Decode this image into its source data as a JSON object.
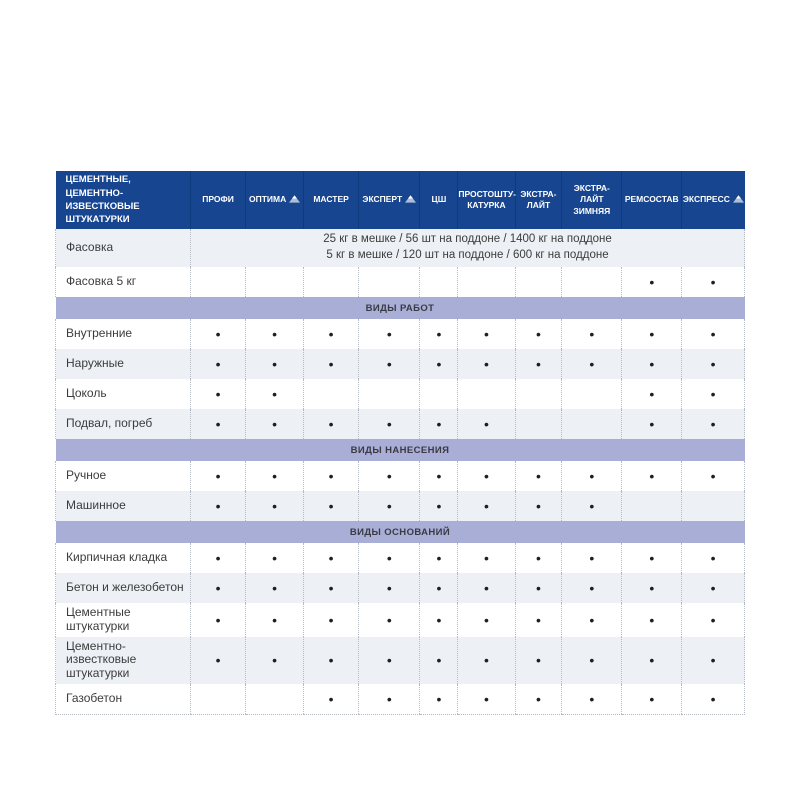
{
  "table": {
    "corner_title": "ЦЕМЕНТНЫЕ,\nЦЕМЕНТНО-ИЗВЕСТКОВЫЕ\nШТУКАТУРКИ",
    "dot_glyph": "•",
    "colors": {
      "header_bg": "#17458f",
      "section_bg": "#a8aed6",
      "row_alt_bg": "#edf0f5",
      "dot_color": "#1f1f1f"
    },
    "columns": [
      {
        "label": "ПРОФИ"
      },
      {
        "label": "ОПТИМА",
        "icon": "mountain-icon"
      },
      {
        "label": "МАСТЕР"
      },
      {
        "label": "ЭКСПЕРТ",
        "icon": "mountain-icon"
      },
      {
        "label": "ЦШ"
      },
      {
        "label": "ПРОСТОШТУ-\nКАТУРКА"
      },
      {
        "label": "ЭКСТРА-\nЛАЙТ"
      },
      {
        "label": "ЭКСТРА-\nЛАЙТ\nЗИМНЯЯ"
      },
      {
        "label": "РЕМСОСТАВ"
      },
      {
        "label": "ЭКСПРЕСС",
        "icon": "mountain-icon"
      }
    ],
    "rows": [
      {
        "type": "span",
        "label": "Фасовка",
        "lines": [
          "25 кг в мешке / 56 шт на поддоне / 1400 кг на поддоне",
          "5 кг в мешке / 120 шт на поддоне / 600 кг на поддоне"
        ]
      },
      {
        "type": "dots",
        "label": "Фасовка 5 кг",
        "dots": [
          0,
          0,
          0,
          0,
          0,
          0,
          0,
          0,
          1,
          1
        ]
      },
      {
        "type": "section",
        "label": "ВИДЫ РАБОТ"
      },
      {
        "type": "dots",
        "label": "Внутренние",
        "dots": [
          1,
          1,
          1,
          1,
          1,
          1,
          1,
          1,
          1,
          1
        ]
      },
      {
        "type": "dots",
        "label": "Наружные",
        "dots": [
          1,
          1,
          1,
          1,
          1,
          1,
          1,
          1,
          1,
          1
        ]
      },
      {
        "type": "dots",
        "label": "Цоколь",
        "dots": [
          1,
          1,
          0,
          0,
          0,
          0,
          0,
          0,
          1,
          1
        ]
      },
      {
        "type": "dots",
        "label": "Подвал, погреб",
        "dots": [
          1,
          1,
          1,
          1,
          1,
          1,
          0,
          0,
          1,
          1
        ]
      },
      {
        "type": "section",
        "label": "ВИДЫ НАНЕСЕНИЯ"
      },
      {
        "type": "dots",
        "label": "Ручное",
        "dots": [
          1,
          1,
          1,
          1,
          1,
          1,
          1,
          1,
          1,
          1
        ]
      },
      {
        "type": "dots",
        "label": "Машинное",
        "dots": [
          1,
          1,
          1,
          1,
          1,
          1,
          1,
          1,
          0,
          0
        ]
      },
      {
        "type": "section",
        "label": "ВИДЫ ОСНОВАНИЙ"
      },
      {
        "type": "dots",
        "label": "Кирпичная кладка",
        "dots": [
          1,
          1,
          1,
          1,
          1,
          1,
          1,
          1,
          1,
          1
        ]
      },
      {
        "type": "dots",
        "label": "Бетон и железобетон",
        "dots": [
          1,
          1,
          1,
          1,
          1,
          1,
          1,
          1,
          1,
          1
        ]
      },
      {
        "type": "dots",
        "label": "Цементные штукатурки",
        "dots": [
          1,
          1,
          1,
          1,
          1,
          1,
          1,
          1,
          1,
          1
        ]
      },
      {
        "type": "dots",
        "label": "Цементно-известковые\nштукатурки",
        "dots": [
          1,
          1,
          1,
          1,
          1,
          1,
          1,
          1,
          1,
          1
        ]
      },
      {
        "type": "dots",
        "label": "Газобетон",
        "dots": [
          0,
          0,
          1,
          1,
          1,
          1,
          1,
          1,
          1,
          1
        ]
      }
    ]
  }
}
